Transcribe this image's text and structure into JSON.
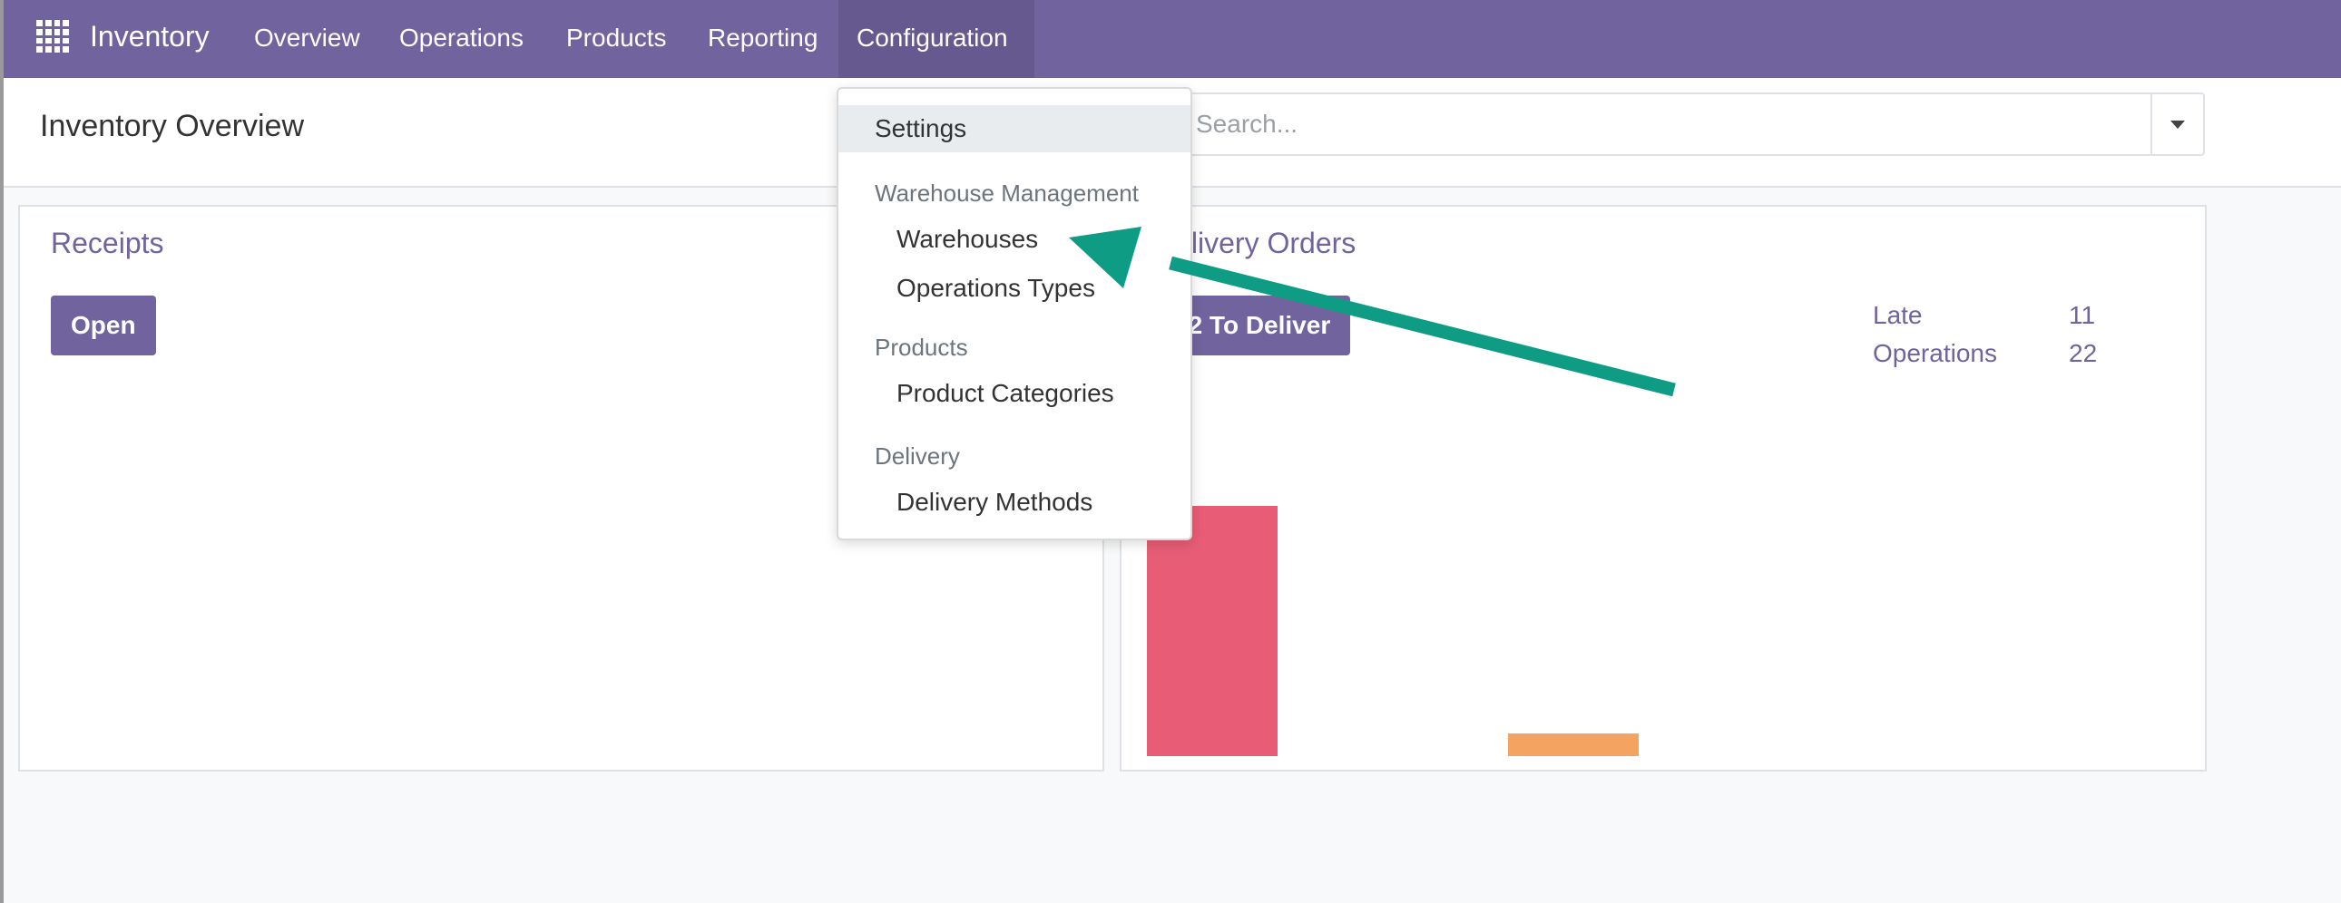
{
  "navbar": {
    "brand": "Inventory",
    "menu": [
      "Overview",
      "Operations",
      "Products",
      "Reporting",
      "Configuration"
    ]
  },
  "control_panel": {
    "title": "Inventory Overview",
    "search_placeholder": "Search..."
  },
  "cards": {
    "receipts": {
      "title": "Receipts",
      "button": "Open"
    },
    "delivery": {
      "title": "Delivery Orders",
      "button": "22 To Deliver",
      "stats": [
        {
          "label": "Late",
          "value": "11"
        },
        {
          "label": "Operations",
          "value": "22"
        }
      ],
      "bars": [
        {
          "color": "#e85d75",
          "level": 1.0
        },
        {
          "color": "#f4a460",
          "level": 0.09
        }
      ]
    }
  },
  "dropdown": {
    "settings": "Settings",
    "sections": [
      {
        "header": "Warehouse Management",
        "items": [
          "Warehouses",
          "Operations Types"
        ]
      },
      {
        "header": "Products",
        "items": [
          "Product Categories"
        ]
      },
      {
        "header": "Delivery",
        "items": [
          "Delivery Methods"
        ]
      }
    ]
  },
  "colors": {
    "brand": "#71639e",
    "annotation_arrow": "#0f9c84"
  }
}
